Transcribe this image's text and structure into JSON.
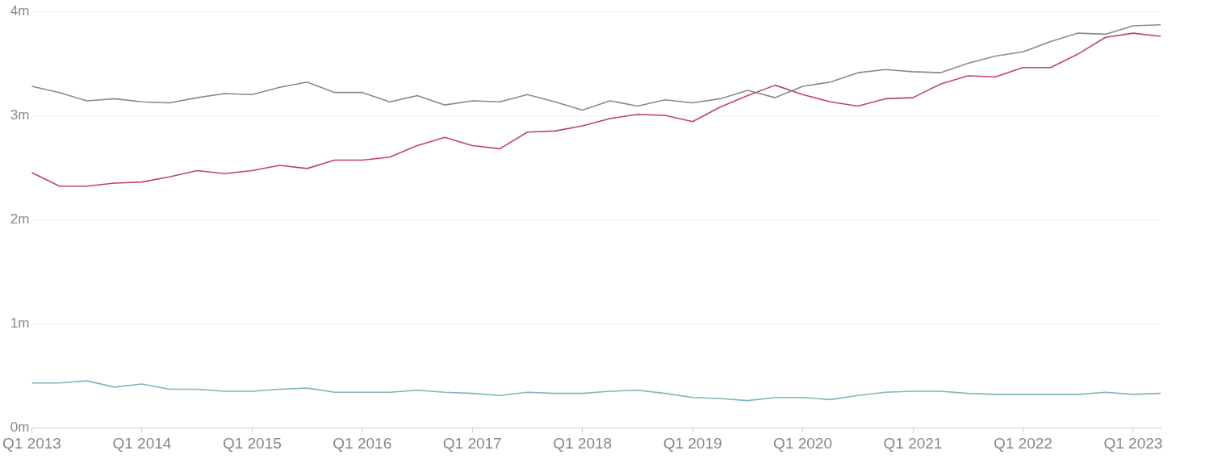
{
  "chart_data": {
    "type": "line",
    "categories": [
      "Q1 2013",
      null,
      null,
      null,
      "Q1 2014",
      null,
      null,
      null,
      "Q1 2015",
      null,
      null,
      null,
      "Q1 2016",
      null,
      null,
      null,
      "Q1 2017",
      null,
      null,
      null,
      "Q1 2018",
      null,
      null,
      null,
      "Q1 2019",
      null,
      null,
      null,
      "Q1 2020",
      null,
      null,
      null,
      "Q1 2021",
      null,
      null,
      null,
      "Q1 2022",
      null,
      null,
      null,
      "Q1 2023",
      null
    ],
    "series": [
      {
        "color": "#8a8a8a",
        "values": [
          3.28,
          3.22,
          3.14,
          3.16,
          3.13,
          3.12,
          3.17,
          3.21,
          3.2,
          3.27,
          3.32,
          3.22,
          3.22,
          3.13,
          3.19,
          3.1,
          3.14,
          3.13,
          3.2,
          3.13,
          3.05,
          3.14,
          3.09,
          3.15,
          3.12,
          3.16,
          3.24,
          3.17,
          3.28,
          3.32,
          3.41,
          3.44,
          3.42,
          3.41,
          3.5,
          3.57,
          3.61,
          3.71,
          3.79,
          3.78,
          3.86,
          3.87
        ]
      },
      {
        "color": "#c2426c",
        "values": [
          2.45,
          2.32,
          2.32,
          2.35,
          2.36,
          2.41,
          2.47,
          2.44,
          2.47,
          2.52,
          2.49,
          2.57,
          2.57,
          2.6,
          2.71,
          2.79,
          2.71,
          2.68,
          2.84,
          2.85,
          2.9,
          2.97,
          3.01,
          3.0,
          2.94,
          3.08,
          3.19,
          3.29,
          3.2,
          3.13,
          3.09,
          3.16,
          3.17,
          3.3,
          3.38,
          3.37,
          3.46,
          3.46,
          3.59,
          3.75,
          3.79,
          3.76
        ]
      },
      {
        "color": "#7fb6be",
        "values": [
          0.43,
          0.43,
          0.45,
          0.39,
          0.42,
          0.37,
          0.37,
          0.35,
          0.35,
          0.37,
          0.38,
          0.34,
          0.34,
          0.34,
          0.36,
          0.34,
          0.33,
          0.31,
          0.34,
          0.33,
          0.33,
          0.35,
          0.36,
          0.33,
          0.29,
          0.28,
          0.26,
          0.29,
          0.29,
          0.27,
          0.31,
          0.34,
          0.35,
          0.35,
          0.33,
          0.32,
          0.32,
          0.32,
          0.32,
          0.34,
          0.32,
          0.33
        ]
      }
    ],
    "ylim": [
      0,
      4
    ],
    "yticks": [
      {
        "value": 0,
        "label": "0m"
      },
      {
        "value": 1,
        "label": "1m"
      },
      {
        "value": 2,
        "label": "2m"
      },
      {
        "value": 3,
        "label": "3m"
      },
      {
        "value": 4,
        "label": "4m"
      }
    ],
    "grid": "y",
    "marker": "none",
    "line_style": "solid"
  }
}
